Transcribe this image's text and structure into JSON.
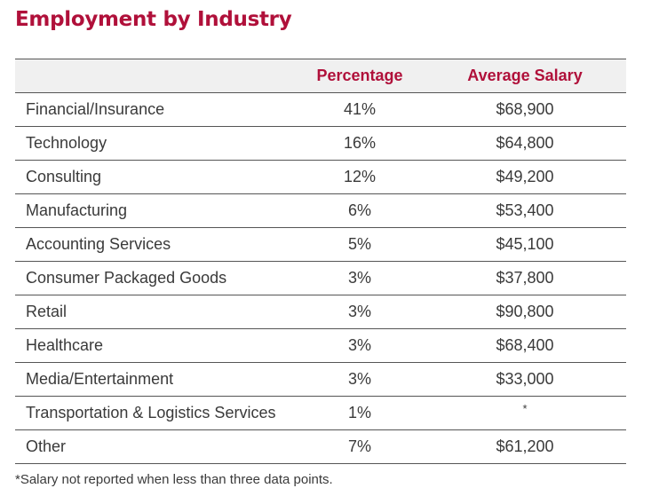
{
  "title": "Employment by Industry",
  "table": {
    "headers": {
      "industry": "",
      "percentage": "Percentage",
      "salary": "Average Salary"
    },
    "rows": [
      {
        "industry": "Financial/Insurance",
        "percentage": "41%",
        "salary": "$68,900"
      },
      {
        "industry": "Technology",
        "percentage": "16%",
        "salary": "$64,800"
      },
      {
        "industry": "Consulting",
        "percentage": "12%",
        "salary": "$49,200"
      },
      {
        "industry": "Manufacturing",
        "percentage": "6%",
        "salary": "$53,400"
      },
      {
        "industry": "Accounting Services",
        "percentage": "5%",
        "salary": "$45,100"
      },
      {
        "industry": "Consumer Packaged Goods",
        "percentage": "3%",
        "salary": "$37,800"
      },
      {
        "industry": "Retail",
        "percentage": "3%",
        "salary": "$90,800"
      },
      {
        "industry": "Healthcare",
        "percentage": "3%",
        "salary": "$68,400"
      },
      {
        "industry": "Media/Entertainment",
        "percentage": "3%",
        "salary": "$33,000"
      },
      {
        "industry": "Transportation & Logistics Services",
        "percentage": "1%",
        "salary": "*"
      },
      {
        "industry": "Other",
        "percentage": "7%",
        "salary": "$61,200"
      }
    ]
  },
  "footnote": "*Salary not reported when less than three data points.",
  "colors": {
    "accent": "#b0103a",
    "text": "#3a3a3a",
    "header_bg": "#f0f0f0",
    "rule": "#555555"
  }
}
